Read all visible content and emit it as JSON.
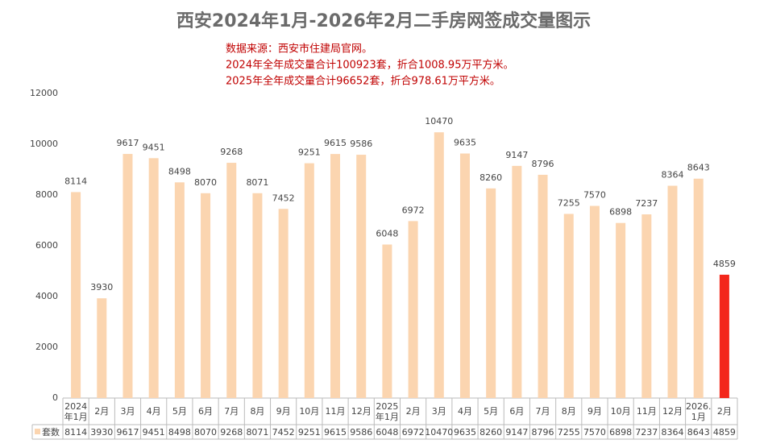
{
  "chart_data": {
    "type": "bar",
    "title": "西安2024年1月-2026年2月二手房网签成交量图示",
    "annotations": [
      "数据来源：西安市住建局官网。",
      "2024年全年成交量合计100923套，折合1008.95万平方米。",
      "2025年全年成交量合计96652套，折合978.61万平方米。"
    ],
    "categories": [
      "2024\n年1月",
      "2月",
      "3月",
      "4月",
      "5月",
      "6月",
      "7月",
      "8月",
      "9月",
      "10月",
      "11月",
      "12月",
      "2025\n年1月",
      "2月",
      "3月",
      "4月",
      "5月",
      "6月",
      "7月",
      "8月",
      "9月",
      "10月",
      "11月",
      "12月",
      "2026.\n1月",
      "2月"
    ],
    "series": [
      {
        "name": "套数",
        "values": [
          8114,
          3930,
          9617,
          9451,
          8498,
          8070,
          9268,
          8071,
          7452,
          9251,
          9615,
          9586,
          6048,
          6972,
          10470,
          9635,
          8260,
          9147,
          8796,
          7255,
          7570,
          6898,
          7237,
          8364,
          8643,
          4859
        ],
        "color": "#fbd5b0",
        "colors": [
          "#fbd5b0",
          "#fbd5b0",
          "#fbd5b0",
          "#fbd5b0",
          "#fbd5b0",
          "#fbd5b0",
          "#fbd5b0",
          "#fbd5b0",
          "#fbd5b0",
          "#fbd5b0",
          "#fbd5b0",
          "#fbd5b0",
          "#fbd5b0",
          "#fbd5b0",
          "#fbd5b0",
          "#fbd5b0",
          "#fbd5b0",
          "#fbd5b0",
          "#fbd5b0",
          "#fbd5b0",
          "#fbd5b0",
          "#fbd5b0",
          "#fbd5b0",
          "#fbd5b0",
          "#fbd5b0",
          "#f3271b"
        ]
      }
    ],
    "ylim": [
      0,
      12000
    ],
    "yticks": [
      0,
      2000,
      4000,
      6000,
      8000,
      10000,
      12000
    ],
    "grid": false
  }
}
